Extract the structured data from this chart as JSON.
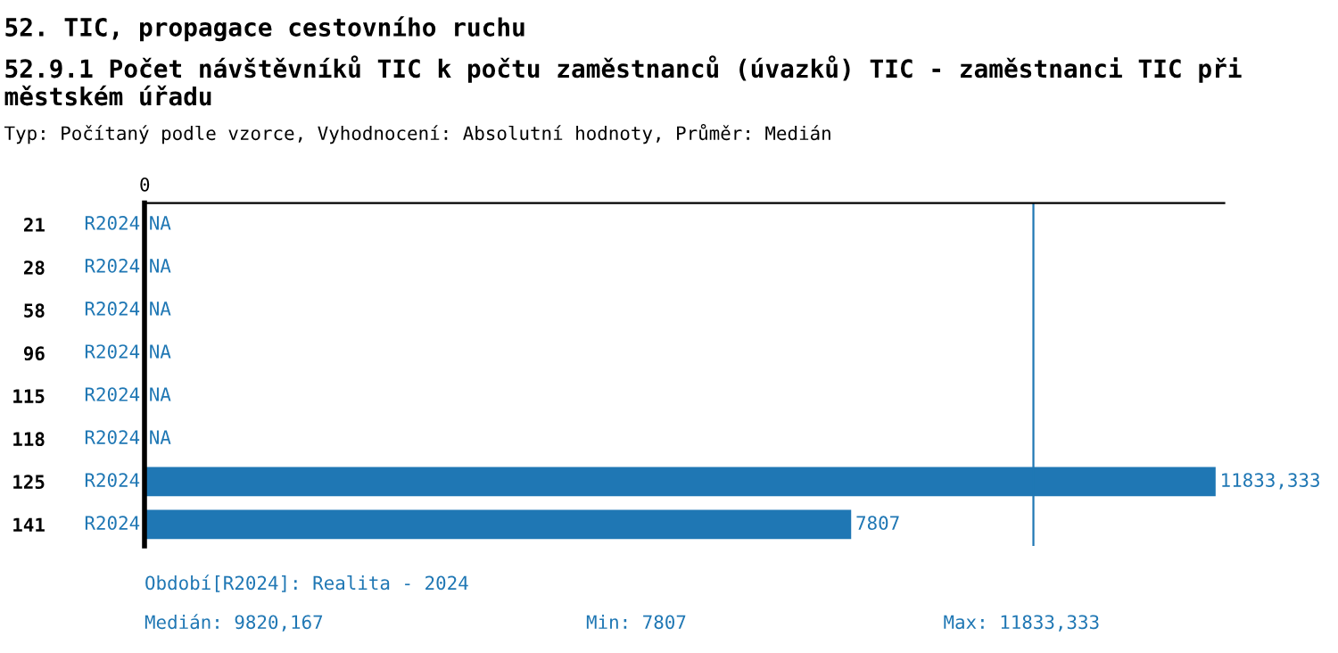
{
  "chart_data": {
    "type": "bar",
    "orientation": "horizontal",
    "title": "52. TIC, propagace cestovního ruchu",
    "subtitle": "52.9.1 Počet návštěvníků TIC k počtu zaměstnanců (úvazků) TIC - zaměstnanci TIC při městském úřadu",
    "categories": [
      "21",
      "28",
      "58",
      "96",
      "115",
      "118",
      "125",
      "141"
    ],
    "series": [
      {
        "name": "R2024",
        "color": "#1f77b4",
        "values": [
          null,
          null,
          null,
          null,
          null,
          null,
          11833.333,
          7807
        ],
        "value_labels": [
          "NA",
          "NA",
          "NA",
          "NA",
          "NA",
          "NA",
          "11833,333",
          "7807"
        ]
      }
    ],
    "ref_lines": [
      {
        "axis": "x",
        "value": 9820.167,
        "label": null,
        "color": "#1f77b4"
      }
    ],
    "grid": false,
    "legend": false,
    "annotations": [
      "0",
      "Typ: Počítaný podle vzorce, Vyhodnocení: Absolutní hodnoty, Průměr: Medián",
      "Období[R2024]: Realita - 2024",
      "Medián: 9820,167",
      "Min: 7807",
      "Max: 11833,333"
    ]
  }
}
